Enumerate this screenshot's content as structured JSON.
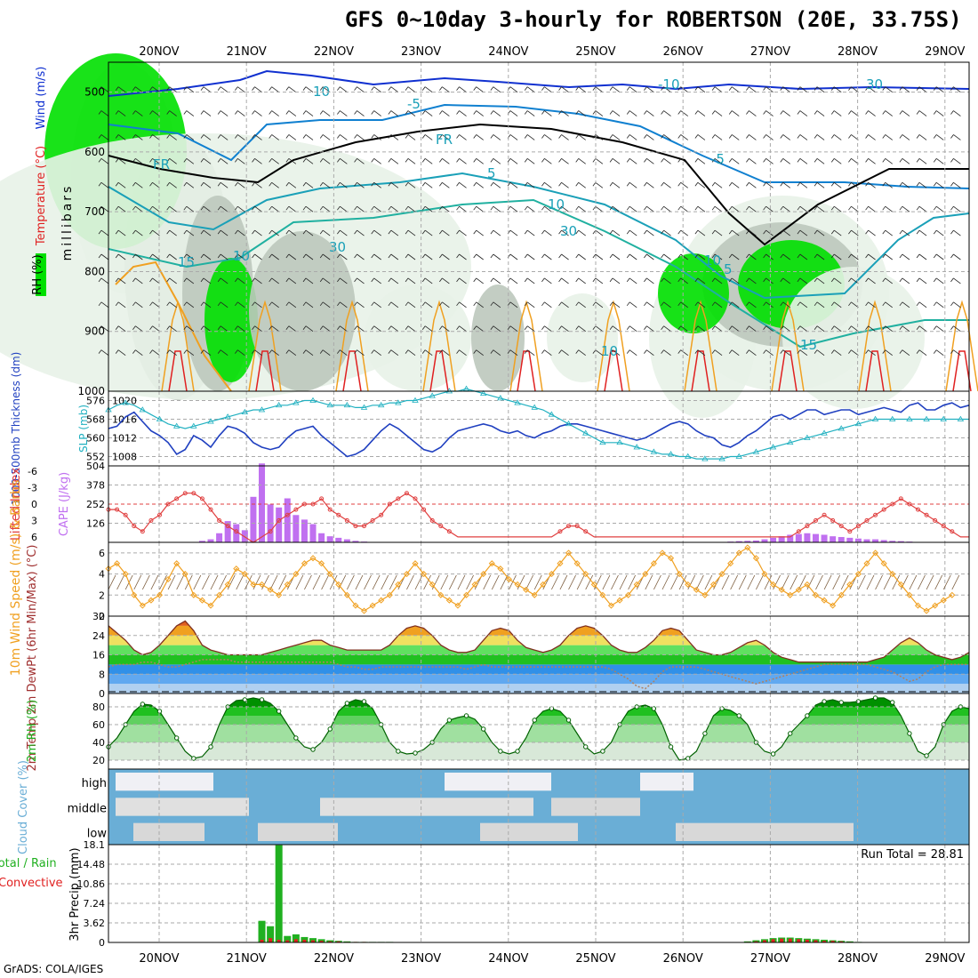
{
  "title": "GFS 0~10day 3-hourly for ROBERTSON (20E, 33.75S)",
  "credit": "GrADS: COLA/IGES",
  "colors": {
    "rh_green": "#00e000",
    "rh_light": "#e8f2e8",
    "rh_grey": "#bcc8bc",
    "temp_warm": "#f0a020",
    "temp_red": "#e02020",
    "wind_blue": "#1030d0",
    "thickness_line": "#2040c0",
    "slp_line": "#20b0c0",
    "cape_bar": "#c070f0",
    "li_line": "#e04040",
    "wind10m_line": "#f0a020",
    "cloud_blue": "#6aaed6",
    "precip_green": "#20b020",
    "precip_red": "#e02020"
  },
  "chart_data": [
    {
      "type": "heatmap",
      "name": "upper-air-crosssection",
      "ylabel_parts": [
        "RH (%)",
        "Temperature (°C)",
        "Wind (m/s)"
      ],
      "ylabel_units": "millibars",
      "y_ticks": [
        500,
        600,
        700,
        800,
        900,
        1000
      ],
      "ylim": [
        450,
        1000
      ],
      "x_ticks": [
        "20NOV",
        "21NOV",
        "22NOV",
        "23NOV",
        "24NOV",
        "25NOV",
        "26NOV",
        "27NOV",
        "28NOV",
        "29NOV"
      ],
      "contour_labels": [
        "10",
        "-5",
        "-10",
        "FR",
        "FR",
        "-5",
        "5",
        "10",
        "15",
        "10",
        "5",
        "10",
        "15",
        "30",
        "30",
        "30",
        "10"
      ],
      "freezing_level_label": "FR"
    },
    {
      "type": "line",
      "name": "thickness-slp",
      "ylabel_left": "1000-500mb Thickness (dm)",
      "ylabel_right": "SLP (mb)",
      "left_ticks": [
        552,
        560,
        568,
        576
      ],
      "right_ticks": [
        1008,
        1012,
        1016,
        1020
      ],
      "series": [
        {
          "name": "Thickness",
          "values": [
            564,
            565,
            569,
            571,
            567,
            563,
            561,
            558,
            553,
            555,
            561,
            559,
            556,
            561,
            565,
            564,
            562,
            558,
            556,
            555,
            556,
            560,
            563,
            564,
            565,
            561,
            558,
            555,
            552,
            553,
            555,
            559,
            563,
            566,
            564,
            561,
            558,
            555,
            554,
            556,
            560,
            563,
            564,
            565,
            566,
            565,
            563,
            562,
            563,
            561,
            560,
            562,
            563,
            565,
            566,
            566,
            565,
            564,
            563,
            562,
            561,
            560,
            559,
            560,
            562,
            564,
            566,
            567,
            566,
            563,
            561,
            560,
            557,
            556,
            558,
            561,
            563,
            566,
            569,
            570,
            568,
            570,
            572,
            572,
            570,
            571,
            572,
            572,
            570,
            571,
            572,
            573,
            572,
            571,
            574,
            575,
            572,
            572,
            574,
            575,
            573,
            574
          ]
        },
        {
          "name": "SLP",
          "values": [
            1018,
            1019,
            1019.5,
            1019,
            1018,
            1017,
            1016,
            1015,
            1014.5,
            1014,
            1014.5,
            1015,
            1015.5,
            1016,
            1016.5,
            1017,
            1017.5,
            1018,
            1018,
            1018.5,
            1019,
            1019,
            1019.5,
            1020,
            1020,
            1019.5,
            1019,
            1019,
            1019,
            1018.5,
            1018.5,
            1019,
            1019,
            1019.5,
            1019.5,
            1020,
            1020,
            1020.5,
            1021,
            1021.5,
            1022,
            1022,
            1022.5,
            1022,
            1021.5,
            1021,
            1020.5,
            1020,
            1019.5,
            1019,
            1018.5,
            1018,
            1017,
            1016,
            1015,
            1014,
            1013,
            1012,
            1011,
            1011,
            1011,
            1010.5,
            1010,
            1009.5,
            1009,
            1008.5,
            1008.5,
            1008,
            1008,
            1007.5,
            1007.5,
            1007.5,
            1007.5,
            1008,
            1008,
            1008.5,
            1009,
            1009.5,
            1010,
            1010.5,
            1011,
            1011.5,
            1012,
            1012.5,
            1013,
            1013.5,
            1014,
            1014.5,
            1015,
            1015.5,
            1016,
            1016,
            1016,
            1016,
            1016,
            1016,
            1016,
            1016,
            1016,
            1016,
            1016,
            1016
          ]
        }
      ]
    },
    {
      "type": "bar",
      "name": "lifted-index-cape",
      "ylabel_left": "Lifted Index",
      "ylabel_right": "CAPE (J/kg)",
      "left_ticks": [
        "-6",
        "-3",
        "0",
        "3",
        "6"
      ],
      "right_ticks": [
        "504",
        "378",
        "252",
        "126"
      ],
      "cape_values": [
        0,
        0,
        0,
        0,
        0,
        0,
        0,
        0,
        0,
        0,
        0,
        10,
        20,
        60,
        140,
        120,
        80,
        300,
        520,
        250,
        230,
        290,
        180,
        150,
        120,
        60,
        40,
        30,
        20,
        10,
        5,
        0,
        0,
        0,
        0,
        0,
        0,
        0,
        0,
        0,
        0,
        0,
        0,
        0,
        0,
        0,
        0,
        0,
        0,
        0,
        0,
        0,
        0,
        0,
        0,
        0,
        0,
        0,
        0,
        0,
        0,
        0,
        0,
        0,
        0,
        0,
        0,
        0,
        0,
        0,
        0,
        0,
        0,
        5,
        8,
        10,
        12,
        20,
        30,
        40,
        50,
        55,
        60,
        55,
        50,
        40,
        35,
        30,
        25,
        20,
        20,
        15,
        10,
        8,
        5,
        0,
        0,
        0,
        0,
        0,
        0,
        0
      ],
      "li_values": [
        1,
        1,
        2,
        4,
        5,
        3,
        2,
        0,
        -1,
        -2,
        -2,
        -1,
        1,
        3,
        4,
        5,
        6,
        7,
        6,
        5,
        3,
        2,
        1,
        0,
        0,
        -1,
        1,
        2,
        3,
        4,
        4,
        3,
        2,
        0,
        -1,
        -2,
        -1,
        1,
        3,
        4,
        5,
        6,
        6,
        6,
        6,
        6,
        6,
        6,
        6,
        6,
        6,
        6,
        6,
        5,
        4,
        4,
        5,
        6,
        6,
        6,
        6,
        6,
        6,
        6,
        6,
        6,
        6,
        6,
        6,
        6,
        6,
        6,
        6,
        6,
        6,
        6,
        6,
        6,
        6,
        6,
        6,
        5,
        4,
        3,
        2,
        3,
        4,
        5,
        4,
        3,
        2,
        1,
        0,
        -1,
        0,
        1,
        2,
        3,
        4,
        5,
        6,
        6
      ]
    },
    {
      "type": "line",
      "name": "10m-wind",
      "ylabel": "10m Wind Speed (m/s) & Barbs",
      "y_ticks": [
        0,
        2,
        4,
        6
      ],
      "ylim": [
        0,
        7
      ],
      "values": [
        4.5,
        5,
        4,
        2,
        1,
        1.5,
        2,
        3.5,
        5,
        4,
        2,
        1.5,
        1,
        2,
        3,
        4.5,
        4,
        3,
        3,
        2.5,
        2,
        3,
        4,
        5,
        5.5,
        5,
        4,
        3,
        2,
        1,
        0.5,
        1,
        1.5,
        2,
        3,
        4,
        5,
        4,
        3,
        2,
        1.5,
        1,
        2,
        3,
        4,
        5,
        4.5,
        3.5,
        3,
        2.5,
        2,
        3,
        4,
        5,
        6,
        5,
        4,
        3,
        2,
        1,
        1.5,
        2,
        3,
        4,
        5,
        6,
        5.5,
        4,
        3,
        2.5,
        2,
        3,
        4,
        5,
        6,
        6.5,
        5.5,
        4,
        3,
        2.5,
        2,
        2.5,
        3,
        2,
        1.5,
        1,
        2,
        3,
        4,
        5,
        6,
        5,
        4,
        3,
        2,
        1,
        0.5,
        1,
        1.5,
        2
      ]
    },
    {
      "type": "area",
      "name": "2m-temperature",
      "ylabel": "2m Temp 2m DewPt (6hr Min/Max) (°C)",
      "y_ticks": [
        0,
        8,
        16,
        24,
        32
      ],
      "ylim": [
        0,
        32
      ],
      "temp": [
        28,
        25,
        22,
        18,
        16,
        17,
        20,
        24,
        28,
        30,
        26,
        20,
        18,
        17,
        16,
        16,
        16,
        16,
        16,
        17,
        18,
        19,
        20,
        21,
        22,
        22,
        20,
        19,
        18,
        18,
        18,
        18,
        18,
        20,
        24,
        27,
        28,
        27,
        24,
        20,
        18,
        17,
        17,
        18,
        22,
        26,
        27,
        26,
        22,
        19,
        18,
        17,
        18,
        20,
        24,
        27,
        28,
        27,
        24,
        20,
        18,
        17,
        17,
        19,
        22,
        26,
        27,
        26,
        22,
        18,
        17,
        16,
        16,
        17,
        19,
        21,
        22,
        20,
        17,
        15,
        14,
        13,
        13,
        13,
        13,
        13,
        13,
        13,
        13,
        13,
        14,
        15,
        18,
        21,
        23,
        21,
        18,
        16,
        15,
        14,
        15,
        17
      ],
      "dewpt": [
        11,
        12,
        12,
        12,
        13,
        13,
        12,
        11,
        11,
        12,
        13,
        14,
        14,
        14,
        14,
        13,
        13,
        13,
        13,
        13,
        13,
        13,
        13,
        13,
        13,
        13,
        13,
        12,
        11,
        11,
        10,
        10,
        11,
        11,
        11,
        11,
        11,
        11,
        11,
        11,
        11,
        11,
        10,
        11,
        12,
        11,
        11,
        11,
        11,
        11,
        11,
        11,
        11,
        11,
        11,
        11,
        11,
        11,
        11,
        10,
        8,
        6,
        3,
        2,
        5,
        9,
        11,
        11,
        11,
        11,
        10,
        9,
        8,
        7,
        6,
        5,
        4,
        5,
        6,
        7,
        8,
        9,
        10,
        11,
        12,
        12,
        12,
        12,
        12,
        12,
        11,
        10,
        9,
        7,
        5,
        6,
        9,
        11,
        12,
        12,
        12,
        12
      ]
    },
    {
      "type": "area",
      "name": "2m-rh",
      "ylabel": "2m RH (%)",
      "y_ticks": [
        20,
        40,
        60,
        80
      ],
      "ylim": [
        10,
        95
      ],
      "values": [
        35,
        45,
        60,
        75,
        83,
        82,
        75,
        60,
        45,
        30,
        22,
        24,
        35,
        60,
        80,
        87,
        88,
        90,
        88,
        84,
        75,
        60,
        45,
        35,
        32,
        40,
        55,
        75,
        84,
        88,
        86,
        78,
        60,
        40,
        30,
        27,
        28,
        32,
        40,
        55,
        65,
        68,
        70,
        66,
        55,
        40,
        30,
        27,
        30,
        45,
        65,
        75,
        78,
        75,
        65,
        50,
        35,
        27,
        30,
        40,
        60,
        75,
        80,
        82,
        78,
        60,
        35,
        20,
        22,
        30,
        50,
        70,
        78,
        76,
        70,
        60,
        40,
        30,
        27,
        35,
        50,
        60,
        70,
        82,
        86,
        88,
        85,
        85,
        86,
        88,
        90,
        90,
        85,
        70,
        50,
        30,
        25,
        35,
        60,
        75,
        80,
        78
      ]
    },
    {
      "type": "heatmap",
      "name": "cloud-cover",
      "ylabel": "Cloud Cover (%)",
      "row_labels": [
        "high",
        "middle",
        "low"
      ]
    },
    {
      "type": "bar",
      "name": "3hr-precip",
      "ylabel": "3hr Precip (mm)",
      "ylabel_left": "Total / Rain Convective",
      "y_ticks": [
        "0",
        "3.62",
        "7.24",
        "10.86",
        "14.48",
        "18.1"
      ],
      "ylim": [
        0,
        18.1
      ],
      "run_total_label": "Run Total = 28.81",
      "total": [
        0,
        0,
        0,
        0,
        0,
        0,
        0,
        0,
        0,
        0,
        0,
        0,
        0,
        0,
        0,
        0,
        0,
        0,
        4,
        3,
        18,
        1.2,
        1.5,
        1,
        0.8,
        0.6,
        0.4,
        0.3,
        0.2,
        0.1,
        0.1,
        0.1,
        0.1,
        0.1,
        0,
        0,
        0,
        0,
        0,
        0,
        0,
        0,
        0,
        0,
        0,
        0,
        0,
        0,
        0,
        0,
        0,
        0,
        0,
        0,
        0,
        0,
        0,
        0,
        0,
        0,
        0,
        0,
        0,
        0,
        0,
        0,
        0,
        0,
        0,
        0,
        0,
        0,
        0,
        0,
        0,
        0.2,
        0.4,
        0.6,
        0.8,
        0.9,
        0.9,
        0.8,
        0.7,
        0.6,
        0.5,
        0.4,
        0.3,
        0.2,
        0.1,
        0,
        0,
        0,
        0,
        0,
        0,
        0,
        0,
        0,
        0,
        0,
        0,
        0
      ],
      "convective": [
        0,
        0,
        0,
        0,
        0,
        0,
        0,
        0,
        0,
        0,
        0,
        0,
        0,
        0,
        0,
        0,
        0,
        0,
        0.5,
        0.8,
        0.5,
        0.4,
        0.6,
        0.5,
        0.4,
        0.3,
        0.2,
        0.2,
        0.1,
        0.1,
        0.1,
        0.05,
        0.05,
        0.05,
        0,
        0,
        0,
        0,
        0,
        0,
        0,
        0,
        0,
        0,
        0,
        0,
        0,
        0,
        0,
        0,
        0,
        0,
        0,
        0,
        0,
        0,
        0,
        0,
        0,
        0,
        0,
        0,
        0,
        0,
        0,
        0,
        0,
        0,
        0,
        0,
        0,
        0,
        0,
        0,
        0,
        0.1,
        0.2,
        0.4,
        0.6,
        0.7,
        0.7,
        0.6,
        0.5,
        0.4,
        0.3,
        0.3,
        0.2,
        0.1,
        0.05,
        0,
        0,
        0,
        0,
        0,
        0,
        0,
        0,
        0,
        0,
        0,
        0,
        0
      ]
    }
  ]
}
